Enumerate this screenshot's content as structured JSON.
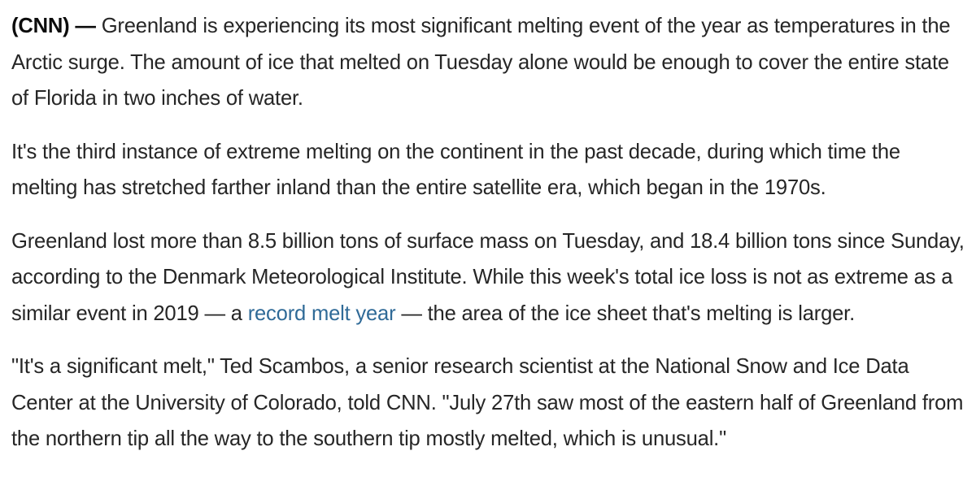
{
  "article": {
    "source_tag": "(CNN) —",
    "paragraphs": [
      {
        "text": " Greenland is experiencing its most significant melting event of the year as temperatures in the Arctic surge. The amount of ice that melted on Tuesday alone would be enough to cover the entire state of Florida in two inches of water."
      },
      {
        "text": "It's the third instance of extreme melting on the continent in the past decade, during which time the melting has stretched farther inland than the entire satellite era, which began in the 1970s."
      },
      {
        "before_link": "Greenland lost more than 8.5 billion tons of surface mass on Tuesday, and 18.4 billion tons since Sunday, according to the Denmark Meteorological Institute. While this week's total ice loss is not as extreme as a similar event in 2019 — a ",
        "link_text": "record melt year",
        "after_link": " — the area of the ice sheet that's melting is larger."
      },
      {
        "text": "\"It's a significant melt,\" Ted Scambos, a senior research scientist at the National Snow and Ice Data Center at the University of Colorado, told CNN. \"July 27th saw most of the eastern half of Greenland from the northern tip all the way to the southern tip mostly melted, which is unusual.\""
      }
    ]
  }
}
